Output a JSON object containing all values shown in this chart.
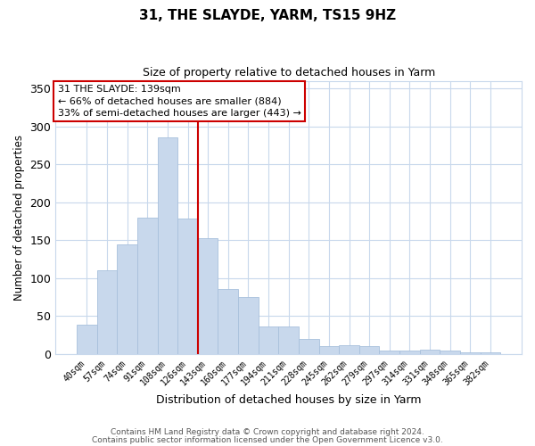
{
  "title": "31, THE SLAYDE, YARM, TS15 9HZ",
  "subtitle": "Size of property relative to detached houses in Yarm",
  "xlabel": "Distribution of detached houses by size in Yarm",
  "ylabel": "Number of detached properties",
  "bar_labels": [
    "40sqm",
    "57sqm",
    "74sqm",
    "91sqm",
    "108sqm",
    "126sqm",
    "143sqm",
    "160sqm",
    "177sqm",
    "194sqm",
    "211sqm",
    "228sqm",
    "245sqm",
    "262sqm",
    "279sqm",
    "297sqm",
    "314sqm",
    "331sqm",
    "348sqm",
    "365sqm",
    "382sqm"
  ],
  "bar_values": [
    38,
    110,
    144,
    180,
    285,
    178,
    153,
    85,
    75,
    36,
    36,
    20,
    10,
    11,
    10,
    4,
    4,
    6,
    4,
    2,
    2
  ],
  "bar_color": "#c8d8ec",
  "bar_edge_color": "#a8c0dc",
  "vline_color": "#cc0000",
  "ylim": [
    0,
    360
  ],
  "yticks": [
    0,
    50,
    100,
    150,
    200,
    250,
    300,
    350
  ],
  "annotation_title": "31 THE SLAYDE: 139sqm",
  "annotation_line1": "← 66% of detached houses are smaller (884)",
  "annotation_line2": "33% of semi-detached houses are larger (443) →",
  "annotation_box_color": "#ffffff",
  "annotation_box_edge": "#cc0000",
  "footer1": "Contains HM Land Registry data © Crown copyright and database right 2024.",
  "footer2": "Contains public sector information licensed under the Open Government Licence v3.0.",
  "background_color": "#ffffff",
  "grid_color": "#c8d8ec"
}
